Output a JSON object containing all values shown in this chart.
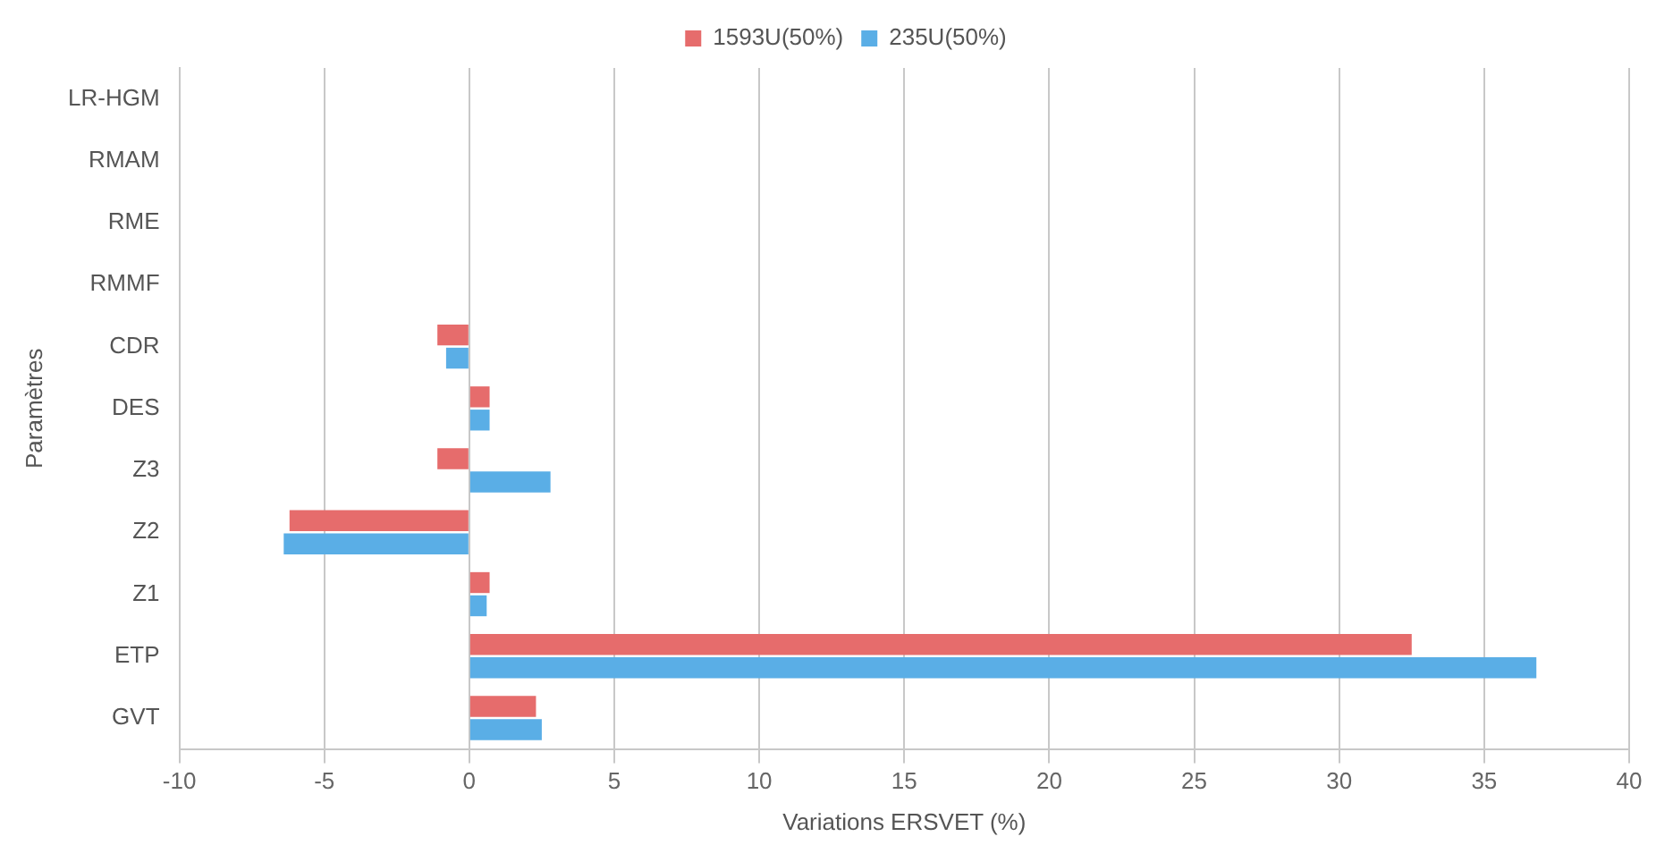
{
  "chart_data": {
    "type": "bar",
    "orientation": "horizontal",
    "xlabel": "Variations ERSVET (%)",
    "ylabel": "Paramètres",
    "categories": [
      "LR-HGM",
      "RMAM",
      "RME",
      "RMMF",
      "CDR",
      "DES",
      "Z3",
      "Z2",
      "Z1",
      "ETP",
      "GVT"
    ],
    "series": [
      {
        "name": "1593U(50%)",
        "color": "#e66c6c",
        "values": [
          0,
          0,
          0,
          0,
          -1.1,
          0.7,
          -1.1,
          -6.2,
          0.7,
          32.5,
          2.3
        ]
      },
      {
        "name": "235U(50%)",
        "color": "#5aaee6",
        "values": [
          0,
          0,
          0,
          0,
          -0.8,
          0.7,
          2.8,
          -6.4,
          0.6,
          36.8,
          2.5
        ]
      }
    ],
    "xlim": [
      -10,
      40
    ],
    "xticks": [
      -10,
      -5,
      0,
      5,
      10,
      15,
      20,
      25,
      30,
      35,
      40
    ],
    "grid": "x",
    "legend": "top"
  }
}
